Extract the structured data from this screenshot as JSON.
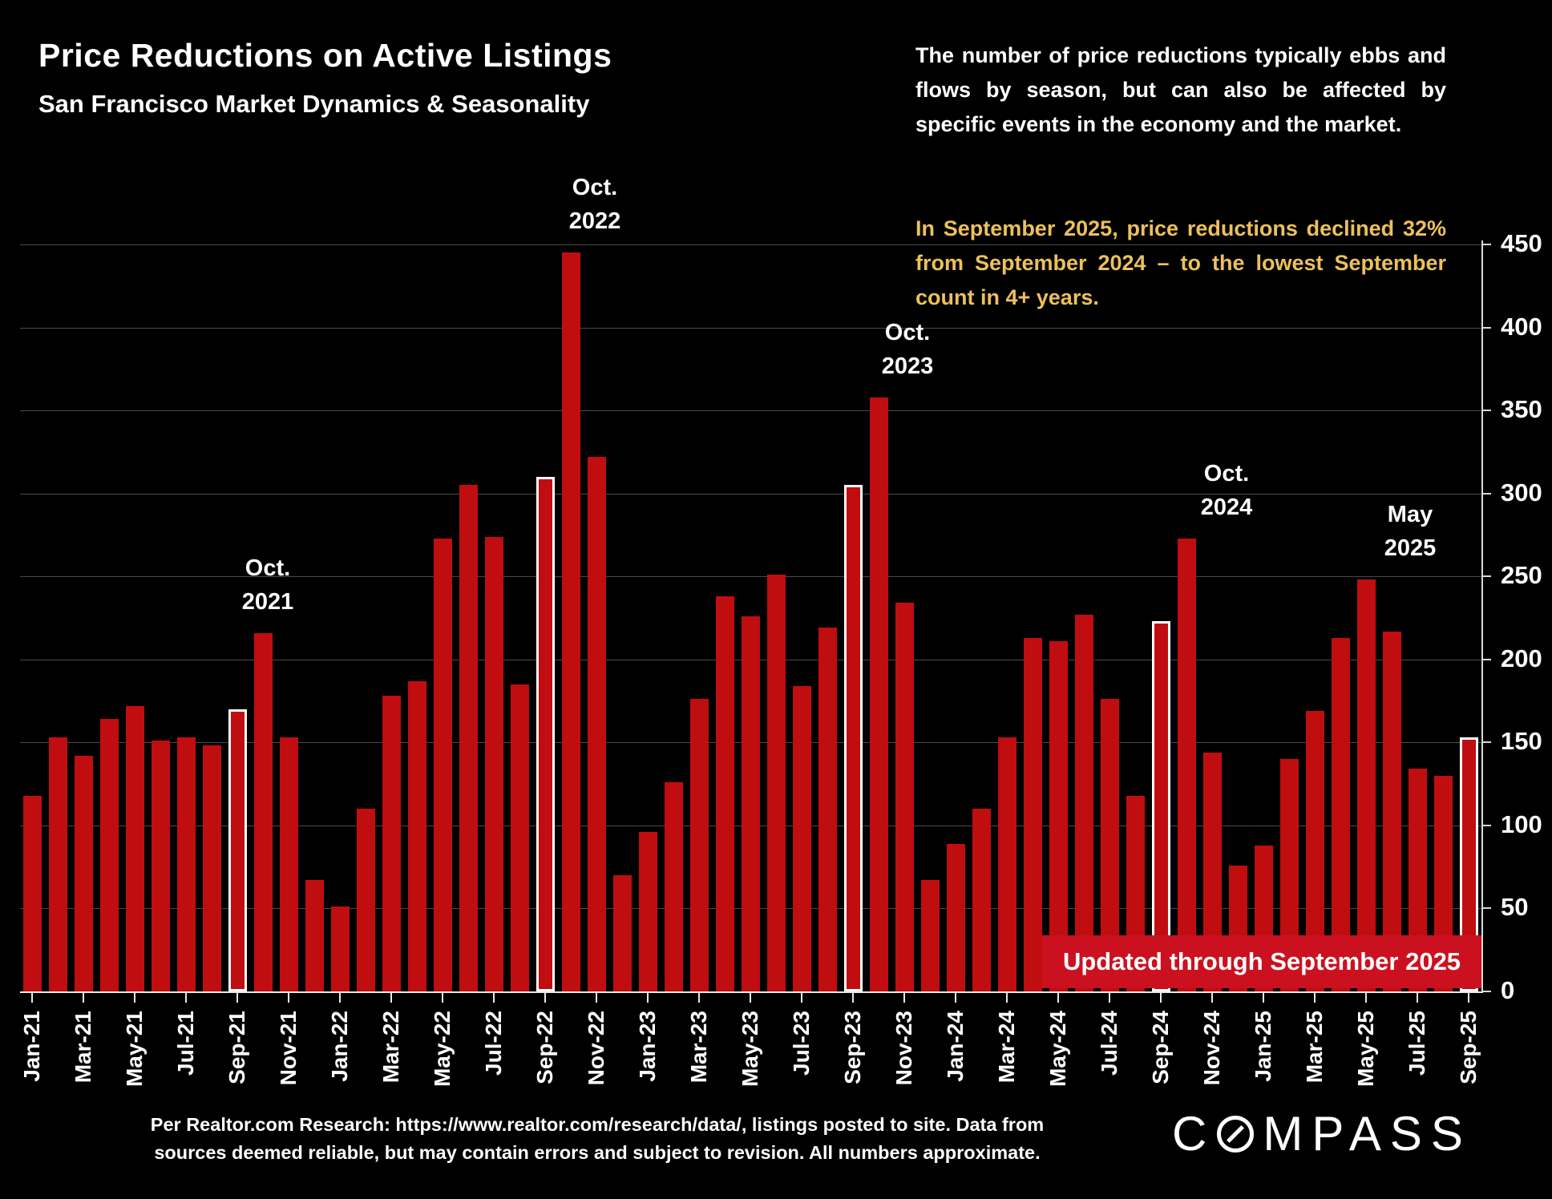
{
  "header": {
    "title": "Price Reductions on Active Listings",
    "subtitle": "San Francisco Market Dynamics & Seasonality"
  },
  "commentary": {
    "white_paragraph": "The number of price reductions typically ebbs and flows by season, but can also be affected by specific events in the economy and the market.",
    "yellow_paragraph": "In September 2025, price reductions declined 32% from September 2024 – to the lowest September count in 4+ years.",
    "yellow_color": "#ecc05c"
  },
  "chart_data": {
    "type": "bar",
    "title": "Price Reductions on Active Listings, San Francisco, by month",
    "xlabel": "",
    "ylabel": "",
    "ylim": [
      0,
      450
    ],
    "yticks": [
      0,
      50,
      100,
      150,
      200,
      250,
      300,
      350,
      400,
      450
    ],
    "grid": "horizontal",
    "legend": "none",
    "bar_color": "#c00d10",
    "highlight_outline_color": "#ffffff",
    "highlight_meaning": "September bars outlined in white",
    "months": [
      {
        "label": "Jan-21",
        "value": 118,
        "highlight": false
      },
      {
        "label": "Feb-21",
        "value": 153,
        "highlight": false
      },
      {
        "label": "Mar-21",
        "value": 142,
        "highlight": false
      },
      {
        "label": "Apr-21",
        "value": 164,
        "highlight": false
      },
      {
        "label": "May-21",
        "value": 172,
        "highlight": false
      },
      {
        "label": "Jun-21",
        "value": 151,
        "highlight": false
      },
      {
        "label": "Jul-21",
        "value": 153,
        "highlight": false
      },
      {
        "label": "Aug-21",
        "value": 148,
        "highlight": false
      },
      {
        "label": "Sep-21",
        "value": 170,
        "highlight": true
      },
      {
        "label": "Oct-21",
        "value": 216,
        "highlight": false
      },
      {
        "label": "Nov-21",
        "value": 153,
        "highlight": false
      },
      {
        "label": "Dec-21",
        "value": 67,
        "highlight": false
      },
      {
        "label": "Jan-22",
        "value": 51,
        "highlight": false
      },
      {
        "label": "Feb-22",
        "value": 110,
        "highlight": false
      },
      {
        "label": "Mar-22",
        "value": 178,
        "highlight": false
      },
      {
        "label": "Apr-22",
        "value": 187,
        "highlight": false
      },
      {
        "label": "May-22",
        "value": 273,
        "highlight": false
      },
      {
        "label": "Jun-22",
        "value": 305,
        "highlight": false
      },
      {
        "label": "Jul-22",
        "value": 274,
        "highlight": false
      },
      {
        "label": "Aug-22",
        "value": 185,
        "highlight": false
      },
      {
        "label": "Sep-22",
        "value": 310,
        "highlight": true
      },
      {
        "label": "Oct-22",
        "value": 445,
        "highlight": false
      },
      {
        "label": "Nov-22",
        "value": 322,
        "highlight": false
      },
      {
        "label": "Dec-22",
        "value": 70,
        "highlight": false
      },
      {
        "label": "Jan-23",
        "value": 96,
        "highlight": false
      },
      {
        "label": "Feb-23",
        "value": 126,
        "highlight": false
      },
      {
        "label": "Mar-23",
        "value": 176,
        "highlight": false
      },
      {
        "label": "Apr-23",
        "value": 238,
        "highlight": false
      },
      {
        "label": "May-23",
        "value": 226,
        "highlight": false
      },
      {
        "label": "Jun-23",
        "value": 251,
        "highlight": false
      },
      {
        "label": "Jul-23",
        "value": 184,
        "highlight": false
      },
      {
        "label": "Aug-23",
        "value": 219,
        "highlight": false
      },
      {
        "label": "Sep-23",
        "value": 305,
        "highlight": true
      },
      {
        "label": "Oct-23",
        "value": 358,
        "highlight": false
      },
      {
        "label": "Nov-23",
        "value": 234,
        "highlight": false
      },
      {
        "label": "Dec-23",
        "value": 67,
        "highlight": false
      },
      {
        "label": "Jan-24",
        "value": 89,
        "highlight": false
      },
      {
        "label": "Feb-24",
        "value": 110,
        "highlight": false
      },
      {
        "label": "Mar-24",
        "value": 153,
        "highlight": false
      },
      {
        "label": "Apr-24",
        "value": 213,
        "highlight": false
      },
      {
        "label": "May-24",
        "value": 211,
        "highlight": false
      },
      {
        "label": "Jun-24",
        "value": 227,
        "highlight": false
      },
      {
        "label": "Jul-24",
        "value": 176,
        "highlight": false
      },
      {
        "label": "Aug-24",
        "value": 118,
        "highlight": false
      },
      {
        "label": "Sep-24",
        "value": 223,
        "highlight": true
      },
      {
        "label": "Oct-24",
        "value": 273,
        "highlight": false
      },
      {
        "label": "Nov-24",
        "value": 144,
        "highlight": false
      },
      {
        "label": "Dec-24",
        "value": 76,
        "highlight": false
      },
      {
        "label": "Jan-25",
        "value": 88,
        "highlight": false
      },
      {
        "label": "Feb-25",
        "value": 140,
        "highlight": false
      },
      {
        "label": "Mar-25",
        "value": 169,
        "highlight": false
      },
      {
        "label": "Apr-25",
        "value": 213,
        "highlight": false
      },
      {
        "label": "May-25",
        "value": 248,
        "highlight": false
      },
      {
        "label": "Jun-25",
        "value": 217,
        "highlight": false
      },
      {
        "label": "Jul-25",
        "value": 134,
        "highlight": false
      },
      {
        "label": "Aug-25",
        "value": 130,
        "highlight": false
      },
      {
        "label": "Sep-25",
        "value": 153,
        "highlight": true
      }
    ],
    "annotations": [
      {
        "line1": "Oct.",
        "line2": "2021",
        "month_index": 9
      },
      {
        "line1": "Oct.",
        "line2": "2022",
        "month_index": 21
      },
      {
        "line1": "Oct.",
        "line2": "2023",
        "month_index": 33
      },
      {
        "line1": "Oct.",
        "line2": "2024",
        "month_index": 45
      },
      {
        "line1": "May",
        "line2": "2025",
        "month_index": 52
      }
    ],
    "banner": "Updated through September 2025",
    "banner_color": "#cb1120"
  },
  "footer": {
    "line1": "Per Realtor.com Research:  https://www.realtor.com/research/data/, listings posted to site. Data from",
    "line2": "sources deemed reliable, but may contain errors and subject to revision. All numbers approximate."
  },
  "logo": {
    "prefix": "C",
    "suffix": "MPASS"
  }
}
